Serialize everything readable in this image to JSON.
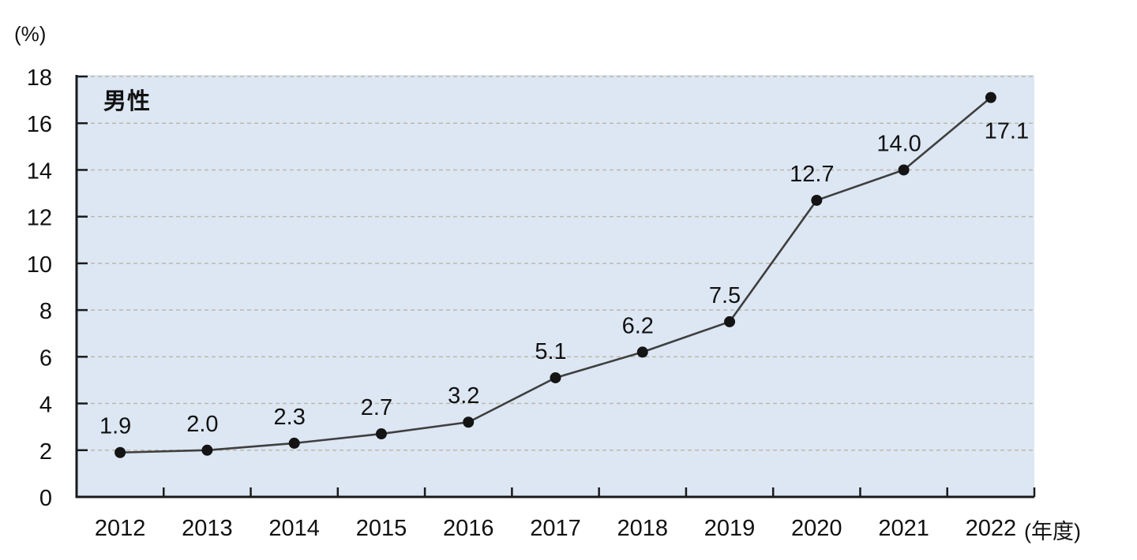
{
  "chart_data": {
    "type": "line",
    "series_label": "男性",
    "unit_label": "(%)",
    "x_suffix": "(年度)",
    "categories": [
      "2012",
      "2013",
      "2014",
      "2015",
      "2016",
      "2017",
      "2018",
      "2019",
      "2020",
      "2021",
      "2022"
    ],
    "values": [
      1.9,
      2.0,
      2.3,
      2.7,
      3.2,
      5.1,
      6.2,
      7.5,
      12.7,
      14.0,
      17.1
    ],
    "value_labels": [
      "1.9",
      "2.0",
      "2.3",
      "2.7",
      "3.2",
      "5.1",
      "6.2",
      "7.5",
      "12.7",
      "14.0",
      "17.1"
    ],
    "ylim": [
      0,
      18
    ],
    "ytick_step": 2,
    "grid": "horizontal-dashed",
    "legend_position": "top-left-inside",
    "colors": {
      "plot_bg": "#dce7f3",
      "gridline": "#c0b6aa",
      "line": "#3f3f3f",
      "marker": "#141414",
      "axis": "#1a1a1a",
      "text": "#111111"
    }
  }
}
